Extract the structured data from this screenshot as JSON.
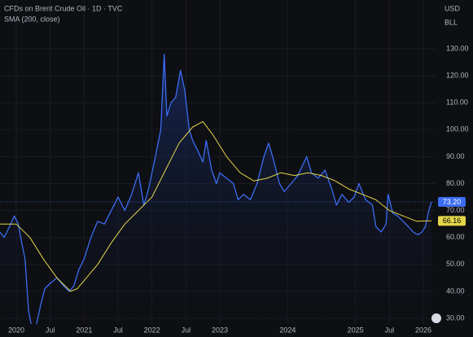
{
  "chart_data": {
    "type": "line",
    "title": "CFDs on Brent Crude Oil · 1D · TVC",
    "subtitle": "SMA (200, close)",
    "currency": "USD",
    "unit": "BLL",
    "background": "#0e0f13",
    "xlim": [
      2019.76,
      2026.18
    ],
    "ylim": [
      27.9,
      148.1
    ],
    "xticks": [
      {
        "value": 2020,
        "label": "2020"
      },
      {
        "value": 2020.5,
        "label": "Jul"
      },
      {
        "value": 2021,
        "label": "2021"
      },
      {
        "value": 2021.5,
        "label": "Jul"
      },
      {
        "value": 2022,
        "label": "2022"
      },
      {
        "value": 2022.5,
        "label": "Jul"
      },
      {
        "value": 2023,
        "label": "2023"
      },
      {
        "value": 2024,
        "label": "2024"
      },
      {
        "value": 2025,
        "label": "2025"
      },
      {
        "value": 2025.5,
        "label": "Jul"
      },
      {
        "value": 2026,
        "label": "2026"
      }
    ],
    "yticks": [
      {
        "value": 30,
        "label": "30.00"
      },
      {
        "value": 40,
        "label": "40.00"
      },
      {
        "value": 50,
        "label": "50.00"
      },
      {
        "value": 60,
        "label": "60.00"
      },
      {
        "value": 70,
        "label": "70.00"
      },
      {
        "value": 80,
        "label": "80.00"
      },
      {
        "value": 90,
        "label": "90.00"
      },
      {
        "value": 100,
        "label": "100.00"
      },
      {
        "value": 110,
        "label": "110.00"
      },
      {
        "value": 120,
        "label": "120.00"
      },
      {
        "value": 130,
        "label": "130.00"
      }
    ],
    "series": [
      {
        "name": "CFDs on Brent Crude Oil",
        "color": "#3b6cf2",
        "x": [
          2019.76,
          2019.82,
          2019.9,
          2019.97,
          2020.03,
          2020.08,
          2020.13,
          2020.18,
          2020.24,
          2020.3,
          2020.36,
          2020.42,
          2020.5,
          2020.6,
          2020.7,
          2020.78,
          2020.85,
          2020.92,
          2021.0,
          2021.1,
          2021.2,
          2021.3,
          2021.4,
          2021.5,
          2021.6,
          2021.7,
          2021.8,
          2021.88,
          2021.95,
          2022.05,
          2022.13,
          2022.18,
          2022.22,
          2022.28,
          2022.35,
          2022.42,
          2022.48,
          2022.55,
          2022.6,
          2022.68,
          2022.75,
          2022.8,
          2022.88,
          2022.95,
          2023.0,
          2023.1,
          2023.2,
          2023.27,
          2023.35,
          2023.45,
          2023.55,
          2023.65,
          2023.72,
          2023.8,
          2023.88,
          2023.95,
          2024.05,
          2024.15,
          2024.28,
          2024.35,
          2024.45,
          2024.55,
          2024.65,
          2024.72,
          2024.8,
          2024.9,
          2024.98,
          2025.05,
          2025.15,
          2025.25,
          2025.3,
          2025.38,
          2025.45,
          2025.48,
          2025.55,
          2025.62,
          2025.7,
          2025.78,
          2025.85,
          2025.92,
          2025.98,
          2026.03,
          2026.08,
          2026.12
        ],
        "values": [
          62,
          60,
          64,
          68,
          65,
          58,
          52,
          33,
          25,
          28,
          35,
          41,
          43,
          45,
          42,
          40,
          42,
          48,
          52,
          60,
          66,
          65,
          70,
          75,
          70,
          76,
          84,
          72,
          78,
          90,
          100,
          128,
          105,
          110,
          112,
          122,
          115,
          100,
          96,
          92,
          88,
          96,
          85,
          80,
          84,
          82,
          80,
          74,
          76,
          74,
          80,
          90,
          95,
          88,
          80,
          77,
          80,
          83,
          90,
          84,
          82,
          85,
          78,
          72,
          76,
          73,
          75,
          80,
          74,
          72,
          64,
          62,
          65,
          76,
          69,
          68,
          66,
          64,
          62,
          61,
          62,
          64,
          70,
          73.2
        ],
        "value_labels": [
          null,
          null,
          null,
          null,
          null,
          null,
          null,
          null,
          null,
          null,
          null,
          null,
          null,
          null,
          null,
          null,
          null,
          null,
          null,
          null,
          null,
          null,
          null,
          null,
          null,
          null,
          null,
          null,
          null,
          null,
          null,
          null,
          null,
          null,
          null,
          null,
          null,
          null,
          null,
          null,
          null,
          null,
          null,
          null,
          null,
          null,
          null,
          null,
          null,
          null,
          null,
          null,
          null,
          null,
          null,
          null,
          null,
          null,
          null,
          null,
          null,
          null,
          null,
          null,
          null,
          null,
          null,
          null,
          null,
          null,
          null,
          null,
          null,
          null,
          null,
          null,
          null,
          null,
          null,
          null,
          null,
          null,
          null,
          "73.20"
        ]
      },
      {
        "name": "SMA (200, close)",
        "color": "#e3d64a",
        "x": [
          2019.76,
          2020.0,
          2020.2,
          2020.4,
          2020.6,
          2020.8,
          2020.9,
          2021.0,
          2021.2,
          2021.4,
          2021.6,
          2021.8,
          2022.0,
          2022.2,
          2022.4,
          2022.6,
          2022.75,
          2022.9,
          2023.1,
          2023.3,
          2023.5,
          2023.7,
          2023.9,
          2024.1,
          2024.3,
          2024.5,
          2024.7,
          2024.9,
          2025.1,
          2025.3,
          2025.5,
          2025.7,
          2025.9,
          2026.12
        ],
        "values": [
          65,
          65,
          60,
          52,
          45,
          40,
          41,
          44,
          50,
          58,
          65,
          70,
          75,
          85,
          95,
          101,
          103,
          98,
          90,
          84,
          81,
          82,
          84,
          83,
          84,
          83,
          81,
          78,
          76,
          74,
          70,
          68,
          66,
          66.16
        ],
        "value_labels": [
          null,
          null,
          null,
          null,
          null,
          null,
          null,
          null,
          null,
          null,
          null,
          null,
          null,
          null,
          null,
          null,
          null,
          null,
          null,
          null,
          null,
          null,
          null,
          null,
          null,
          null,
          null,
          null,
          null,
          null,
          null,
          null,
          null,
          "66.16"
        ]
      }
    ]
  }
}
